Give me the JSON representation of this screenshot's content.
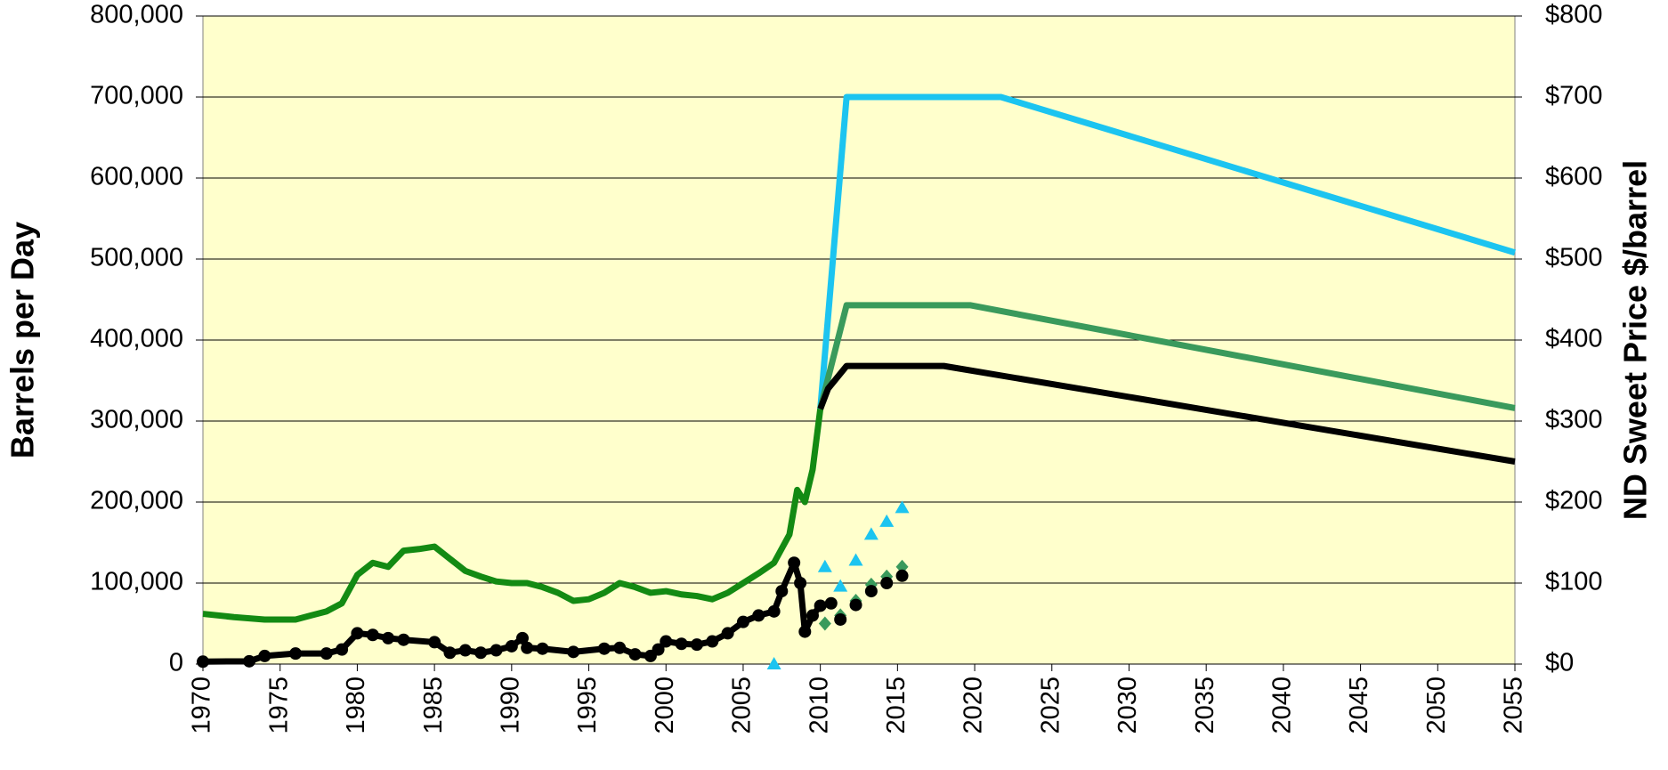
{
  "chart_data": {
    "type": "line",
    "ylabel": "Barrels per Day",
    "y2label": "ND Sweet Price $/barrel",
    "xlim": [
      1970,
      2055
    ],
    "xticks": [
      1970,
      1975,
      1980,
      1985,
      1990,
      1995,
      2000,
      2005,
      2010,
      2015,
      2020,
      2025,
      2030,
      2035,
      2040,
      2045,
      2050,
      2055
    ],
    "ylim": [
      0,
      800000
    ],
    "yticks": [
      0,
      {
        "value": 100000,
        "label": "100,000"
      },
      {
        "value": 200000,
        "label": "200,000"
      },
      {
        "value": 300000,
        "label": "300,000"
      },
      {
        "value": 400000,
        "label": "400,000"
      },
      {
        "value": 500000,
        "label": "500,000"
      },
      {
        "value": 600000,
        "label": "600,000"
      },
      {
        "value": 700000,
        "label": "700,000"
      },
      {
        "value": 800000,
        "label": "800,000"
      }
    ],
    "y2lim": [
      0,
      800
    ],
    "y2ticks": [
      {
        "value": 0,
        "label": "$0"
      },
      {
        "value": 100,
        "label": "$100"
      },
      {
        "value": 200,
        "label": "$200"
      },
      {
        "value": 300,
        "label": "$300"
      },
      {
        "value": 400,
        "label": "$400"
      },
      {
        "value": 500,
        "label": "$500"
      },
      {
        "value": 600,
        "label": "$600"
      },
      {
        "value": 700,
        "label": "$700"
      },
      {
        "value": 800,
        "label": "$800"
      }
    ],
    "grid": true,
    "background": "#ffffcc",
    "series": [
      {
        "color": "#138a13",
        "marker": "none",
        "x": [
          1970,
          1972,
          1974,
          1976,
          1977,
          1978,
          1979,
          1980,
          1981,
          1982,
          1983,
          1984,
          1985,
          1986,
          1987,
          1988,
          1989,
          1990,
          1991,
          1992,
          1993,
          1994,
          1995,
          1996,
          1997,
          1998,
          1999,
          2000,
          2001,
          2002,
          2003,
          2004,
          2005,
          2006,
          2007,
          2008,
          2008.5,
          2009,
          2009.5,
          2010
        ],
        "values": [
          62000,
          58000,
          55000,
          55000,
          60000,
          65000,
          75000,
          110000,
          125000,
          120000,
          140000,
          142000,
          145000,
          130000,
          115000,
          108000,
          102000,
          100000,
          100000,
          95000,
          88000,
          78000,
          80000,
          88000,
          100000,
          95000,
          88000,
          90000,
          86000,
          84000,
          80000,
          88000,
          100000,
          112000,
          125000,
          160000,
          215000,
          200000,
          240000,
          315000
        ]
      },
      {
        "color": "#000000",
        "marker": "dot",
        "axis": "y2",
        "x": [
          1970,
          1973,
          1974,
          1976,
          1978,
          1979,
          1980,
          1981,
          1982,
          1983,
          1985,
          1986,
          1987,
          1988,
          1989,
          1990,
          1990.7,
          1991,
          1992,
          1994,
          1996,
          1997,
          1998,
          1999,
          1999.5,
          2000,
          2001,
          2002,
          2003,
          2004,
          2005,
          2006,
          2007,
          2007.5,
          2008.3,
          2008.7,
          2009,
          2009.5,
          2010,
          2010.7
        ],
        "values": [
          3,
          3.5,
          10,
          13,
          13,
          18,
          38,
          36,
          32,
          30,
          27,
          14,
          17,
          14,
          17,
          22,
          32,
          20,
          19,
          15,
          19,
          20,
          12,
          10,
          18,
          28,
          25,
          24,
          28,
          38,
          52,
          60,
          65,
          90,
          125,
          100,
          40,
          60,
          72,
          75
        ]
      },
      {
        "color": "#1cc4f0",
        "marker": "none",
        "x": [
          2010,
          2011.7,
          2021.7,
          2055
        ],
        "values": [
          315000,
          700000,
          700000,
          508000
        ]
      },
      {
        "color": "#3a9a5c",
        "marker": "none",
        "x": [
          2010,
          2011.7,
          2019.7,
          2055
        ],
        "values": [
          315000,
          443000,
          443000,
          316000
        ]
      },
      {
        "color": "#000000",
        "marker": "none",
        "x": [
          2010,
          2010.5,
          2011.7,
          2018,
          2055
        ],
        "values": [
          315000,
          340000,
          368000,
          368000,
          250000
        ]
      },
      {
        "color": "#1cc4f0",
        "marker": "triangle",
        "axis": "y2",
        "x": [
          2007,
          2010.3,
          2011.3,
          2012.3,
          2013.3,
          2014.3,
          2015.3
        ],
        "values": [
          0,
          120,
          96,
          128,
          160,
          176,
          193
        ]
      },
      {
        "color": "#3a9a5c",
        "marker": "diamond",
        "axis": "y2",
        "x": [
          2010.3,
          2011.3,
          2012.3,
          2013.3,
          2014.3,
          2015.3
        ],
        "values": [
          50,
          60,
          78,
          98,
          108,
          120
        ]
      },
      {
        "color": "#000000",
        "marker": "circle",
        "axis": "y2",
        "x": [
          2011.3,
          2012.3,
          2013.3,
          2014.3,
          2015.3
        ],
        "values": [
          55,
          73,
          90,
          100,
          109
        ]
      }
    ]
  }
}
